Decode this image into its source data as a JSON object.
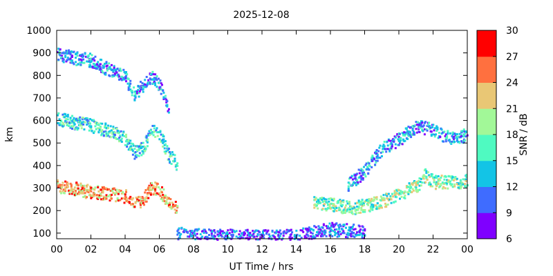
{
  "chart_data": {
    "type": "heatmap",
    "title": "2025-12-08",
    "xlabel": "UT Time / hrs",
    "ylabel": "km",
    "xlim": [
      0,
      24
    ],
    "ylim": [
      75,
      1000
    ],
    "x_ticks": [
      "00",
      "02",
      "04",
      "06",
      "08",
      "10",
      "12",
      "14",
      "16",
      "18",
      "20",
      "22",
      "00"
    ],
    "y_ticks": [
      "100",
      "200",
      "300",
      "400",
      "500",
      "600",
      "700",
      "800",
      "900",
      "1000"
    ],
    "colorbar": {
      "label": "SNR / dB",
      "range": [
        6,
        30
      ],
      "ticks": [
        "6",
        "9",
        "12",
        "15",
        "18",
        "21",
        "24",
        "27",
        "30"
      ],
      "colors": [
        "#7f00ff",
        "#3f6cff",
        "#13c4e6",
        "#4ffac1",
        "#a2f898",
        "#e9c775",
        "#ff703f",
        "#ff0000"
      ]
    },
    "traces": [
      {
        "name": "",
        "x": [
          0.0,
          1.0,
          2.0,
          3.0,
          4.0,
          4.5,
          5.0,
          5.5,
          6.0,
          6.5,
          7.0
        ],
        "y": [
          310,
          300,
          285,
          280,
          265,
          240,
          250,
          310,
          290,
          240,
          220
        ],
        "snr": 24
      },
      {
        "name": "",
        "x": [
          0.0,
          1.0,
          2.0,
          3.0,
          4.0,
          4.5,
          5.0,
          5.5,
          6.0,
          6.5,
          7.0
        ],
        "y": [
          610,
          595,
          580,
          560,
          520,
          460,
          480,
          560,
          540,
          450,
          410
        ],
        "snr": 15
      },
      {
        "name": "",
        "x": [
          0.0,
          1.0,
          2.0,
          3.0,
          3.5,
          4.0,
          4.5,
          5.0,
          5.5,
          6.0,
          6.5
        ],
        "y": [
          900,
          880,
          870,
          830,
          820,
          790,
          720,
          760,
          800,
          760,
          640
        ],
        "snr": 12
      },
      {
        "name": "",
        "x": [
          7.0,
          8.0,
          10.0,
          12.0,
          14.0,
          15.0,
          16.0,
          17.0,
          18.0
        ],
        "y": [
          100,
          95,
          90,
          88,
          90,
          110,
          120,
          115,
          110
        ],
        "snr": 10
      },
      {
        "name": "",
        "x": [
          15.0,
          16.0,
          17.0,
          18.0,
          19.0,
          20.0,
          21.0,
          21.5,
          22.0,
          23.0,
          24.0
        ],
        "y": [
          235,
          230,
          215,
          225,
          245,
          280,
          310,
          360,
          330,
          330,
          335
        ],
        "snr": 18
      },
      {
        "name": "",
        "x": [
          17.0,
          18.0,
          19.0,
          20.0,
          21.0,
          22.0,
          23.0,
          24.0
        ],
        "y": [
          320,
          380,
          480,
          520,
          580,
          560,
          520,
          540
        ],
        "snr": 12
      }
    ]
  }
}
